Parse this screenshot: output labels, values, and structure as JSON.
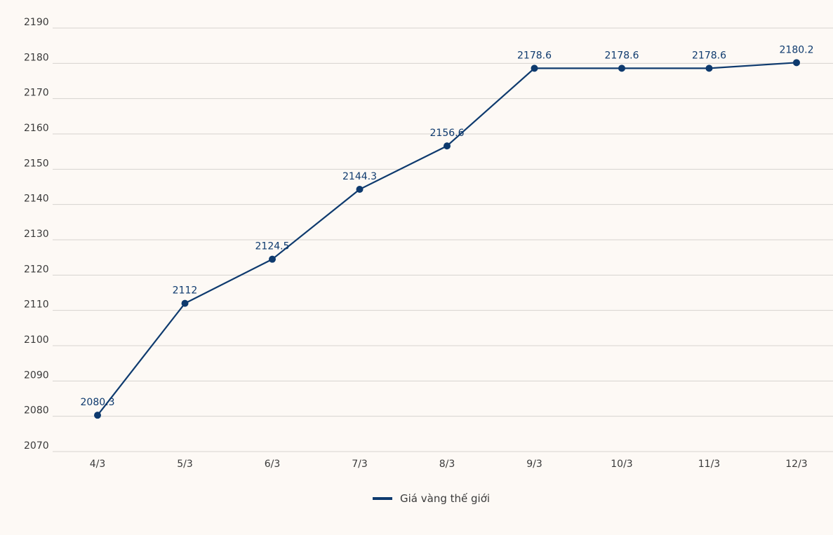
{
  "chart_data": {
    "type": "line",
    "title": "",
    "xlabel": "",
    "ylabel": "",
    "categories": [
      "4/3",
      "5/3",
      "6/3",
      "7/3",
      "8/3",
      "9/3",
      "10/3",
      "11/3",
      "12/3"
    ],
    "series": [
      {
        "name": "Giá vàng thế giới",
        "values": [
          2080.3,
          2112,
          2124.5,
          2144.3,
          2156.6,
          2178.6,
          2178.6,
          2178.6,
          2180.2
        ],
        "labels": [
          "2080.3",
          "2112",
          "2124.5",
          "2144.3",
          "2156.6",
          "2178.6",
          "2178.6",
          "2178.6",
          "2180.2"
        ],
        "color": "#0e3a6e"
      }
    ],
    "ylim": [
      2070,
      2190
    ],
    "yticks": [
      2070,
      2080,
      2090,
      2100,
      2110,
      2120,
      2130,
      2140,
      2150,
      2160,
      2170,
      2180,
      2190
    ],
    "grid": true,
    "legend_position": "bottom-center"
  },
  "colors": {
    "background": "#fdf9f5",
    "grid": "#d6d3cf",
    "series": "#0e3a6e"
  }
}
